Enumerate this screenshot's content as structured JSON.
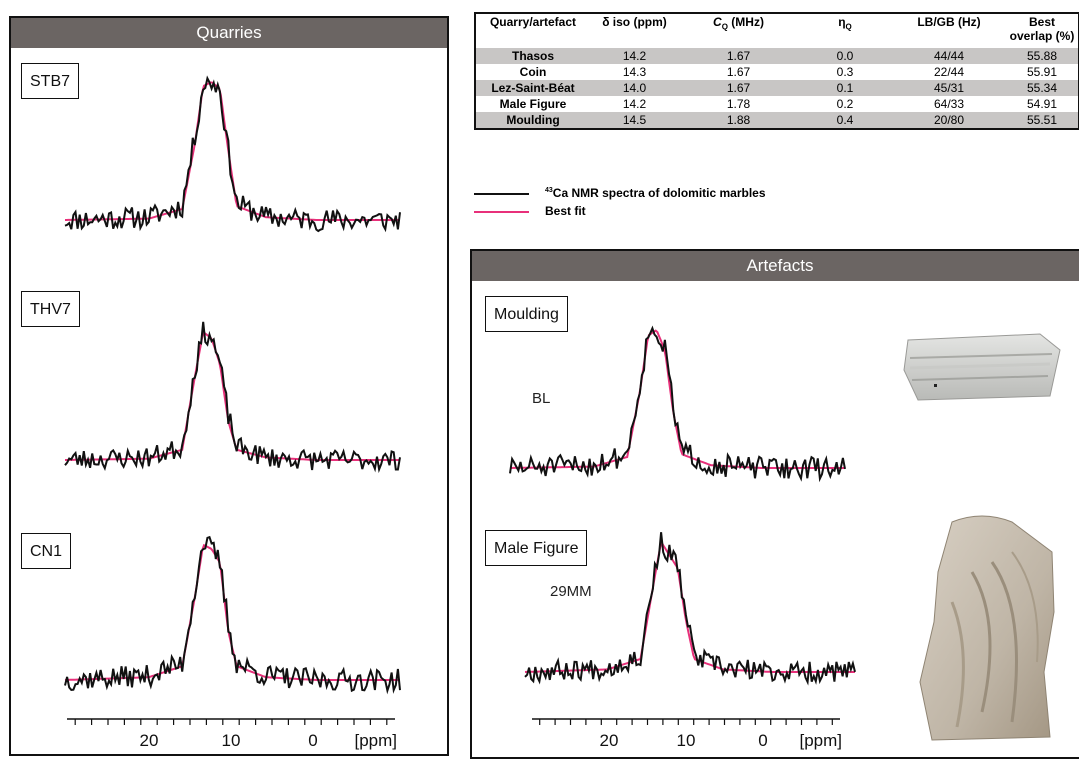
{
  "quarries_panel": {
    "title": "Quarries"
  },
  "artefacts_panel": {
    "title": "Artefacts"
  },
  "table": {
    "headers": [
      "Quarry/artefact",
      "δ iso (ppm)",
      "C",
      "Q",
      "(MHz)",
      "η",
      "Q",
      "LB/GB (Hz)",
      "Best",
      "overlap (%)"
    ],
    "rows": [
      [
        "Thasos",
        "14.2",
        "1.67",
        "0.0",
        "44/44",
        "55.88"
      ],
      [
        "Coin",
        "14.3",
        "1.67",
        "0.3",
        "22/44",
        "55.91"
      ],
      [
        "Lez-Saint-Béat",
        "14.0",
        "1.67",
        "0.1",
        "45/31",
        "55.34"
      ],
      [
        "Male Figure",
        "14.2",
        "1.78",
        "0.2",
        "64/33",
        "54.91"
      ],
      [
        "Moulding",
        "14.5",
        "1.88",
        "0.4",
        "20/80",
        "55.51"
      ]
    ]
  },
  "legend": {
    "spectra_sup": "43",
    "spectra_label": "Ca NMR spectra of dolomitic marbles",
    "fit_label": "Best fit",
    "colors": {
      "spectrum": "#111111",
      "fit": "#e8307a"
    }
  },
  "samples": {
    "stb7": "STB7",
    "thv7": "THV7",
    "cn1": "CN1",
    "moulding": "Moulding",
    "moulding_code": "BL",
    "male_figure": "Male Figure",
    "male_figure_code": "29MM"
  },
  "chart_data": [
    {
      "type": "line",
      "panel": "Quarries",
      "title": "STB7",
      "xlabel": "[ppm]",
      "x_reversed": true,
      "xlim": [
        30,
        -10
      ],
      "x_ticks": [
        20,
        10,
        0
      ],
      "series": [
        {
          "name": "",
          "x": [
            30,
            20,
            16,
            14.5,
            13.5,
            12.5,
            11.5,
            10.5,
            9.5,
            6,
            0,
            -10
          ],
          "values": [
            0.0,
            0.02,
            0.1,
            0.6,
            0.98,
            1.0,
            0.95,
            0.5,
            0.12,
            0.02,
            0.0,
            0.0
          ]
        },
        {
          "name": "",
          "x": [
            30,
            20,
            16,
            14.5,
            13.5,
            12.5,
            11.5,
            10.5,
            9.5,
            6,
            0,
            -10
          ],
          "values": [
            0.0,
            0.01,
            0.08,
            0.55,
            0.97,
            1.0,
            0.95,
            0.5,
            0.1,
            0.02,
            0.0,
            0.0
          ]
        }
      ]
    },
    {
      "type": "line",
      "panel": "Quarries",
      "title": "THV7",
      "xlabel": "[ppm]",
      "x_reversed": true,
      "xlim": [
        30,
        -10
      ],
      "x_ticks": [
        20,
        10,
        0
      ],
      "series": [
        {
          "name": "",
          "x": [
            30,
            20,
            16,
            14.5,
            13.5,
            12.5,
            11.5,
            10.5,
            9.5,
            6,
            0,
            -10
          ],
          "values": [
            0.0,
            0.02,
            0.1,
            0.7,
            1.0,
            0.96,
            0.75,
            0.35,
            0.1,
            0.02,
            0.0,
            0.0
          ]
        },
        {
          "name": "",
          "x": [
            30,
            20,
            16,
            14.5,
            13.5,
            12.5,
            11.5,
            10.5,
            9.5,
            6,
            0,
            -10
          ],
          "values": [
            0.0,
            0.01,
            0.08,
            0.65,
            1.0,
            0.95,
            0.75,
            0.3,
            0.08,
            0.02,
            0.0,
            0.0
          ]
        }
      ]
    },
    {
      "type": "line",
      "panel": "Quarries",
      "title": "CN1",
      "xlabel": "[ppm]",
      "x_reversed": true,
      "xlim": [
        30,
        -10
      ],
      "x_ticks": [
        20,
        10,
        0
      ],
      "series": [
        {
          "name": "",
          "x": [
            30,
            20,
            16,
            14.5,
            13.5,
            12.5,
            11.5,
            10.5,
            9.5,
            6,
            0,
            -10
          ],
          "values": [
            0.0,
            0.03,
            0.12,
            0.65,
            1.0,
            0.95,
            0.85,
            0.4,
            0.12,
            0.03,
            0.0,
            0.0
          ]
        },
        {
          "name": "",
          "x": [
            30,
            20,
            16,
            14.5,
            13.5,
            12.5,
            11.5,
            10.5,
            9.5,
            6,
            0,
            -10
          ],
          "values": [
            0.0,
            0.02,
            0.1,
            0.6,
            0.98,
            0.95,
            0.85,
            0.35,
            0.1,
            0.02,
            0.0,
            0.0
          ]
        }
      ]
    },
    {
      "type": "line",
      "panel": "Artefacts",
      "title": "Moulding",
      "xlabel": "[ppm]",
      "x_reversed": true,
      "xlim": [
        30,
        -10
      ],
      "x_ticks": [
        20,
        10,
        0
      ],
      "series": [
        {
          "name": "",
          "x": [
            30,
            20,
            16,
            14.5,
            13.5,
            12.5,
            11.5,
            10.5,
            9.5,
            6,
            0,
            -10
          ],
          "values": [
            0.0,
            0.02,
            0.1,
            0.6,
            0.97,
            1.0,
            0.85,
            0.45,
            0.12,
            0.02,
            0.0,
            0.0
          ]
        },
        {
          "name": "",
          "x": [
            30,
            20,
            16,
            14.5,
            13.5,
            12.5,
            11.5,
            10.5,
            9.5,
            6,
            0,
            -10
          ],
          "values": [
            0.0,
            0.01,
            0.08,
            0.55,
            0.96,
            1.0,
            0.85,
            0.4,
            0.1,
            0.02,
            0.0,
            0.0
          ]
        }
      ]
    },
    {
      "type": "line",
      "panel": "Artefacts",
      "title": "Male Figure",
      "xlabel": "[ppm]",
      "x_reversed": true,
      "xlim": [
        30,
        -10
      ],
      "x_ticks": [
        20,
        10,
        0
      ],
      "series": [
        {
          "name": "",
          "x": [
            30,
            20,
            16,
            14.5,
            13.5,
            12.5,
            11.5,
            10.5,
            9.5,
            6,
            0,
            -10
          ],
          "values": [
            0.0,
            0.03,
            0.12,
            0.7,
            1.0,
            0.9,
            0.82,
            0.45,
            0.12,
            0.03,
            0.0,
            0.0
          ]
        },
        {
          "name": "",
          "x": [
            30,
            20,
            16,
            14.5,
            13.5,
            12.5,
            11.5,
            10.5,
            9.5,
            6,
            0,
            -10
          ],
          "values": [
            0.0,
            0.02,
            0.1,
            0.65,
            1.0,
            0.9,
            0.8,
            0.4,
            0.1,
            0.02,
            0.0,
            0.0
          ]
        }
      ]
    }
  ]
}
